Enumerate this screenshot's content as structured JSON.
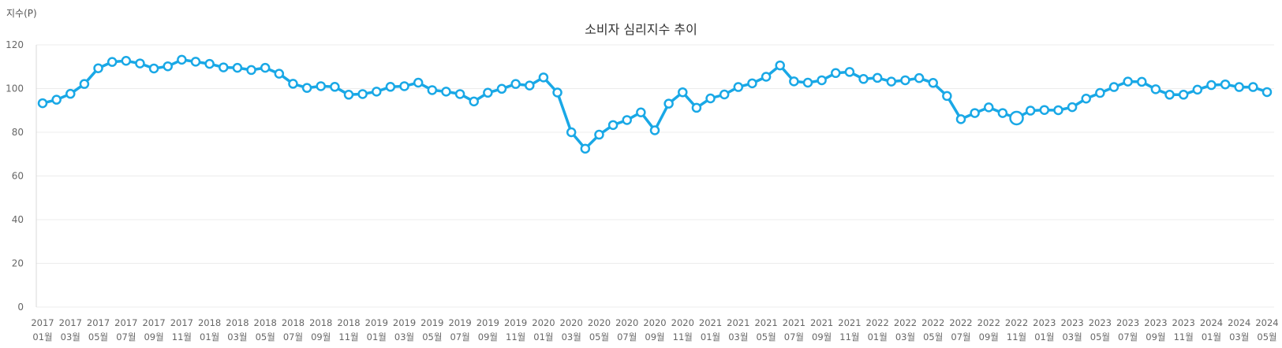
{
  "chart_data": {
    "type": "line",
    "title": "소비자 심리지수 추이",
    "ylabel": "지수(P)",
    "xlabel": "",
    "ylim": [
      0,
      120
    ],
    "yticks": [
      0,
      20,
      40,
      60,
      80,
      100,
      120
    ],
    "highlight_index": 70,
    "series_color": "#19a8e6",
    "x_year_labels": [
      "2017",
      "2017",
      "2017",
      "2017",
      "2017",
      "2017",
      "2018",
      "2018",
      "2018",
      "2018",
      "2018",
      "2018",
      "2019",
      "2019",
      "2019",
      "2019",
      "2019",
      "2019",
      "2020",
      "2020",
      "2020",
      "2020",
      "2020",
      "2020",
      "2021",
      "2021",
      "2021",
      "2021",
      "2021",
      "2021",
      "2022",
      "2022",
      "2022",
      "2022",
      "2022",
      "2022",
      "2023",
      "2023",
      "2023",
      "2023",
      "2023",
      "2023",
      "2024",
      "2024",
      "2024"
    ],
    "x_month_labels": [
      "01월",
      "03월",
      "05월",
      "07월",
      "09월",
      "11월",
      "01월",
      "03월",
      "05월",
      "07월",
      "09월",
      "11월",
      "01월",
      "03월",
      "05월",
      "07월",
      "09월",
      "11월",
      "01월",
      "03월",
      "05월",
      "07월",
      "09월",
      "11월",
      "01월",
      "03월",
      "05월",
      "07월",
      "09월",
      "11월",
      "01월",
      "03월",
      "05월",
      "07월",
      "09월",
      "11월",
      "01월",
      "03월",
      "05월",
      "07월",
      "09월",
      "11월",
      "01월",
      "03월",
      "05월"
    ],
    "series": [
      {
        "name": "소비자 심리지수",
        "values": [
          93.3,
          94.9,
          97.6,
          102.1,
          109.3,
          112.2,
          112.7,
          111.5,
          109.2,
          110.2,
          113.2,
          112.3,
          111.3,
          109.7,
          109.5,
          108.5,
          109.5,
          106.8,
          102.2,
          100.3,
          101.1,
          100.8,
          97.2,
          97.5,
          98.6,
          100.8,
          101.1,
          102.7,
          99.3,
          98.6,
          97.5,
          94.1,
          98.1,
          99.9,
          102.1,
          101.4,
          105.1,
          98.2,
          80.0,
          72.5,
          78.9,
          83.3,
          85.6,
          89.1,
          80.9,
          93.1,
          98.3,
          91.2,
          95.5,
          97.3,
          100.7,
          102.4,
          105.4,
          110.6,
          103.3,
          102.7,
          103.8,
          107.1,
          107.6,
          104.4,
          104.9,
          103.2,
          103.8,
          104.8,
          102.6,
          96.6,
          86.0,
          88.8,
          91.4,
          88.8,
          86.5,
          89.9,
          90.2,
          90.1,
          91.5,
          95.4,
          98.0,
          100.7,
          103.2,
          103.1,
          99.7,
          97.2,
          97.2,
          99.5,
          101.6,
          101.9,
          100.7,
          100.7,
          98.4
        ]
      }
    ]
  }
}
